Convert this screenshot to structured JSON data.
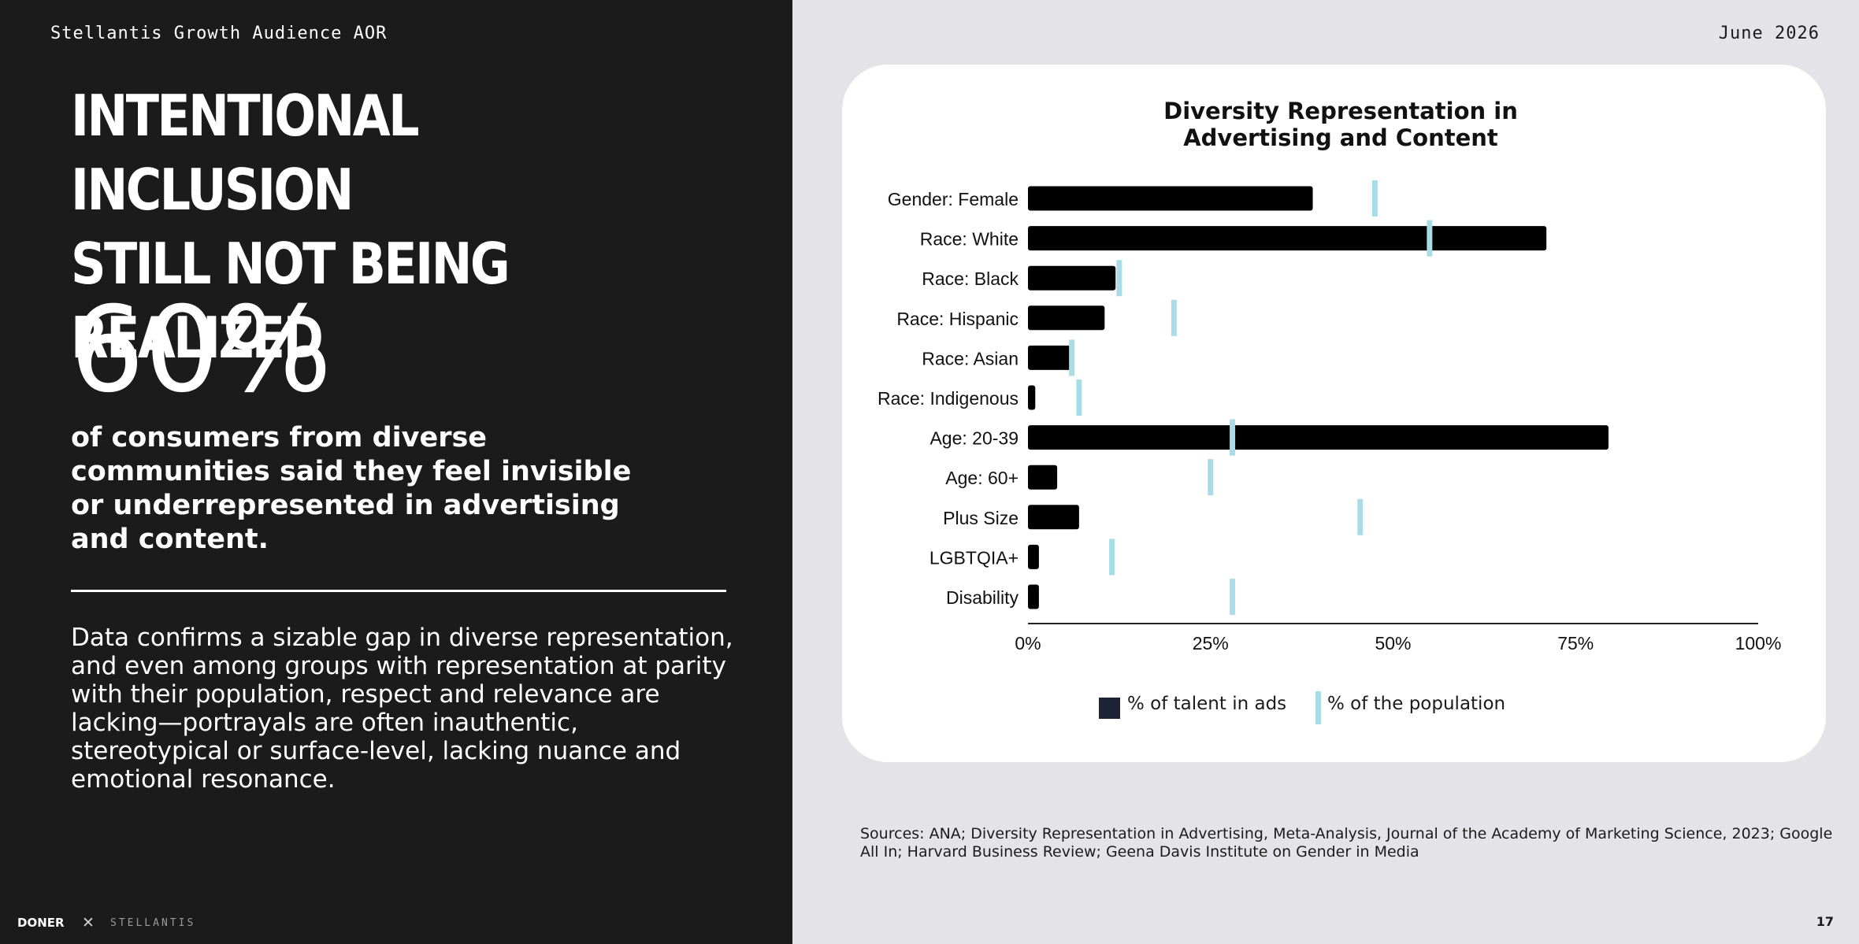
{
  "header": {
    "client": "Stellantis Growth Audience AOR",
    "date": "June 2026"
  },
  "left": {
    "headline_line1": "INTENTIONAL INCLUSION",
    "headline_line2": "STILL NOT BEING REALIZED",
    "big_stat": "60%",
    "stat_description": "of consumers from diverse communities said they feel invisible or underrepresented in advertising and content.",
    "body": "Data confirms a sizable gap in diverse representation, and even among groups with representation at parity with their population, respect and relevance are lacking—portrayals are often inauthentic, stereotypical or surface-level, lacking nuance and emotional resonance."
  },
  "footer": {
    "logo": "DONER",
    "separator": "✕",
    "partner": "STELLANTIS",
    "page_number": "17"
  },
  "colors": {
    "left_panel": "#1b1b1b",
    "bar": "#000000",
    "population_marker": "#a8dde7",
    "legend_talent_swatch": "#1c2334",
    "page_background": "#e4e4e8"
  },
  "chart_data": {
    "type": "bar",
    "orientation": "horizontal",
    "title": "Diversity Representation in Advertising and Content",
    "title_lines": [
      "Diversity Representation in",
      "Advertising and Content"
    ],
    "categories": [
      "Gender: Female",
      "Race: White",
      "Race: Black",
      "Race: Hispanic",
      "Race: Asian",
      "Race: Indigenous",
      "Age: 20-39",
      "Age: 60+",
      "Plus Size",
      "LGBTQIA+",
      "Disability"
    ],
    "series": [
      {
        "name": "% of talent in ads",
        "type": "bar",
        "values": [
          39,
          71,
          12,
          10.5,
          6,
          1,
          79.5,
          4,
          7,
          1.5,
          1.5
        ]
      },
      {
        "name": "% of the population",
        "type": "marker",
        "values": [
          47.5,
          55,
          12.5,
          20,
          6,
          7,
          28,
          25,
          45.5,
          11.5,
          28
        ]
      }
    ],
    "xlim": [
      0,
      100
    ],
    "xticks": [
      "0%",
      "25%",
      "50%",
      "75%",
      "100%"
    ],
    "xtick_values": [
      0,
      25,
      50,
      75,
      100
    ],
    "grid": false,
    "legend_position": "bottom"
  },
  "sources": "Sources: ANA; Diversity Representation in Advertising, Meta-Analysis, Journal of the Academy of Marketing Science, 2023; Google All In; Harvard Business Review; Geena Davis Institute on Gender in Media"
}
